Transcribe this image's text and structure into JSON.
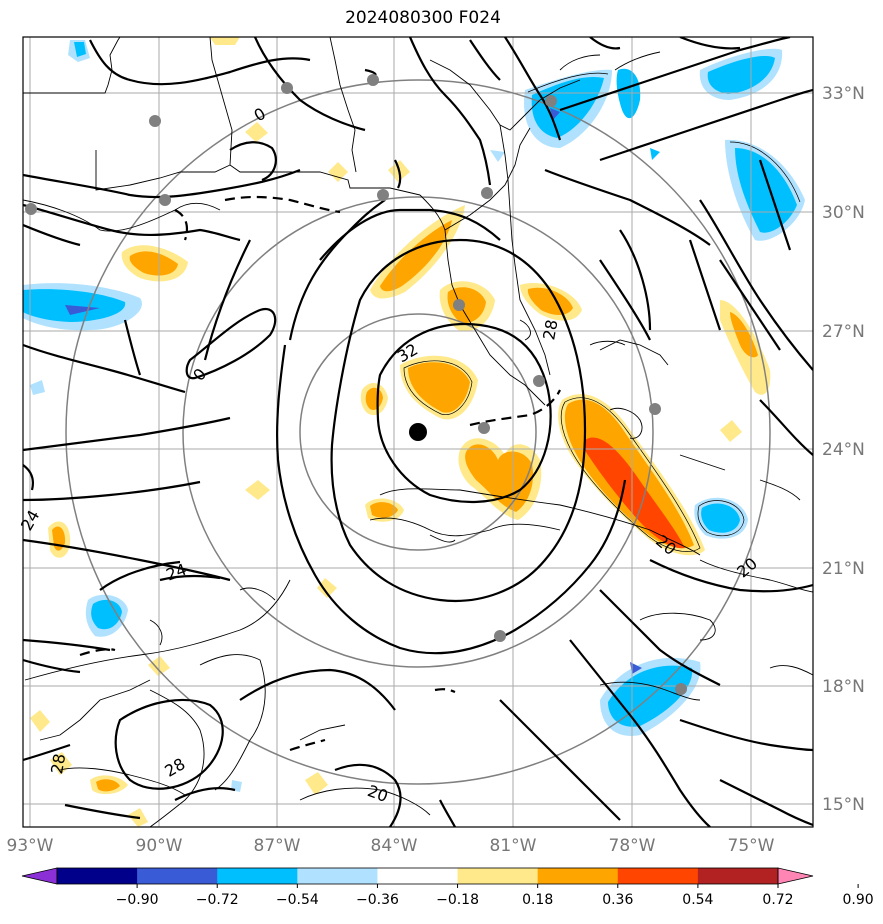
{
  "title": "2024080300 F024",
  "lat_labels": [
    "33°N",
    "30°N",
    "27°N",
    "24°N",
    "21°N",
    "18°N",
    "15°N"
  ],
  "lon_labels": [
    "93°W",
    "90°W",
    "87°W",
    "84°W",
    "81°W",
    "78°W",
    "75°W"
  ],
  "contour_labels": [
    "32",
    "28",
    "24",
    "20",
    "20",
    "28",
    "20",
    "24",
    "0",
    "0",
    "28"
  ],
  "colorbar": {
    "ticks": [
      "−0.90",
      "−0.72",
      "−0.54",
      "−0.36",
      "−0.18",
      "0.18",
      "0.36",
      "0.54",
      "0.72",
      "0.90"
    ],
    "colors": [
      "#8b2fd6",
      "#00008b",
      "#3a5bd6",
      "#00bfff",
      "#b0e2ff",
      "#ffffff",
      "#ffe98a",
      "#ffa500",
      "#ff4500",
      "#b22222",
      "#ff85b5"
    ]
  },
  "colors": {
    "fill_light_blue": "#b0e2ff",
    "fill_blue": "#00bfff",
    "fill_dark_blue": "#3a5bd6",
    "fill_yellow": "#ffe98a",
    "fill_orange": "#ffa500",
    "fill_red_orange": "#ff4500",
    "grid": "#aaaaaa",
    "range_ring": "#808080",
    "station": "#808080"
  }
}
